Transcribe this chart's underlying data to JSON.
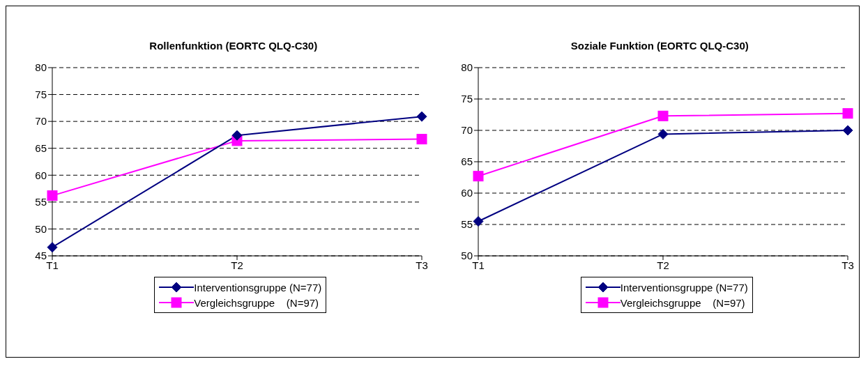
{
  "chart_data": [
    {
      "type": "line",
      "title": "Rollenfunktion (EORTC QLQ-C30)",
      "categories": [
        "T1",
        "T2",
        "T3"
      ],
      "series": [
        {
          "name": "Interventionsgruppe (N=77)",
          "color": "#000080",
          "values": [
            46.6,
            67.4,
            70.9
          ],
          "marker": "diamond"
        },
        {
          "name": "Vergleichsgruppe    (N=97)",
          "color": "#ff00ff",
          "values": [
            56.2,
            66.4,
            66.7
          ],
          "marker": "square"
        }
      ],
      "ylim": [
        45,
        80
      ],
      "yticks": [
        45,
        50,
        55,
        60,
        65,
        70,
        75,
        80
      ],
      "grid": "y",
      "legend": "bottom",
      "line_style": "solid"
    },
    {
      "type": "line",
      "title": "Soziale Funktion (EORTC QLQ-C30)",
      "categories": [
        "T1",
        "T2",
        "T3"
      ],
      "series": [
        {
          "name": "Interventionsgruppe (N=77)",
          "color": "#000080",
          "values": [
            55.5,
            69.4,
            70.0
          ],
          "marker": "diamond"
        },
        {
          "name": "Vergleichsgruppe    (N=97)",
          "color": "#ff00ff",
          "values": [
            62.7,
            72.3,
            72.7
          ],
          "marker": "square"
        }
      ],
      "ylim": [
        50,
        80
      ],
      "yticks": [
        50,
        55,
        60,
        65,
        70,
        75,
        80
      ],
      "grid": "y",
      "legend": "bottom",
      "line_style": "solid"
    }
  ]
}
